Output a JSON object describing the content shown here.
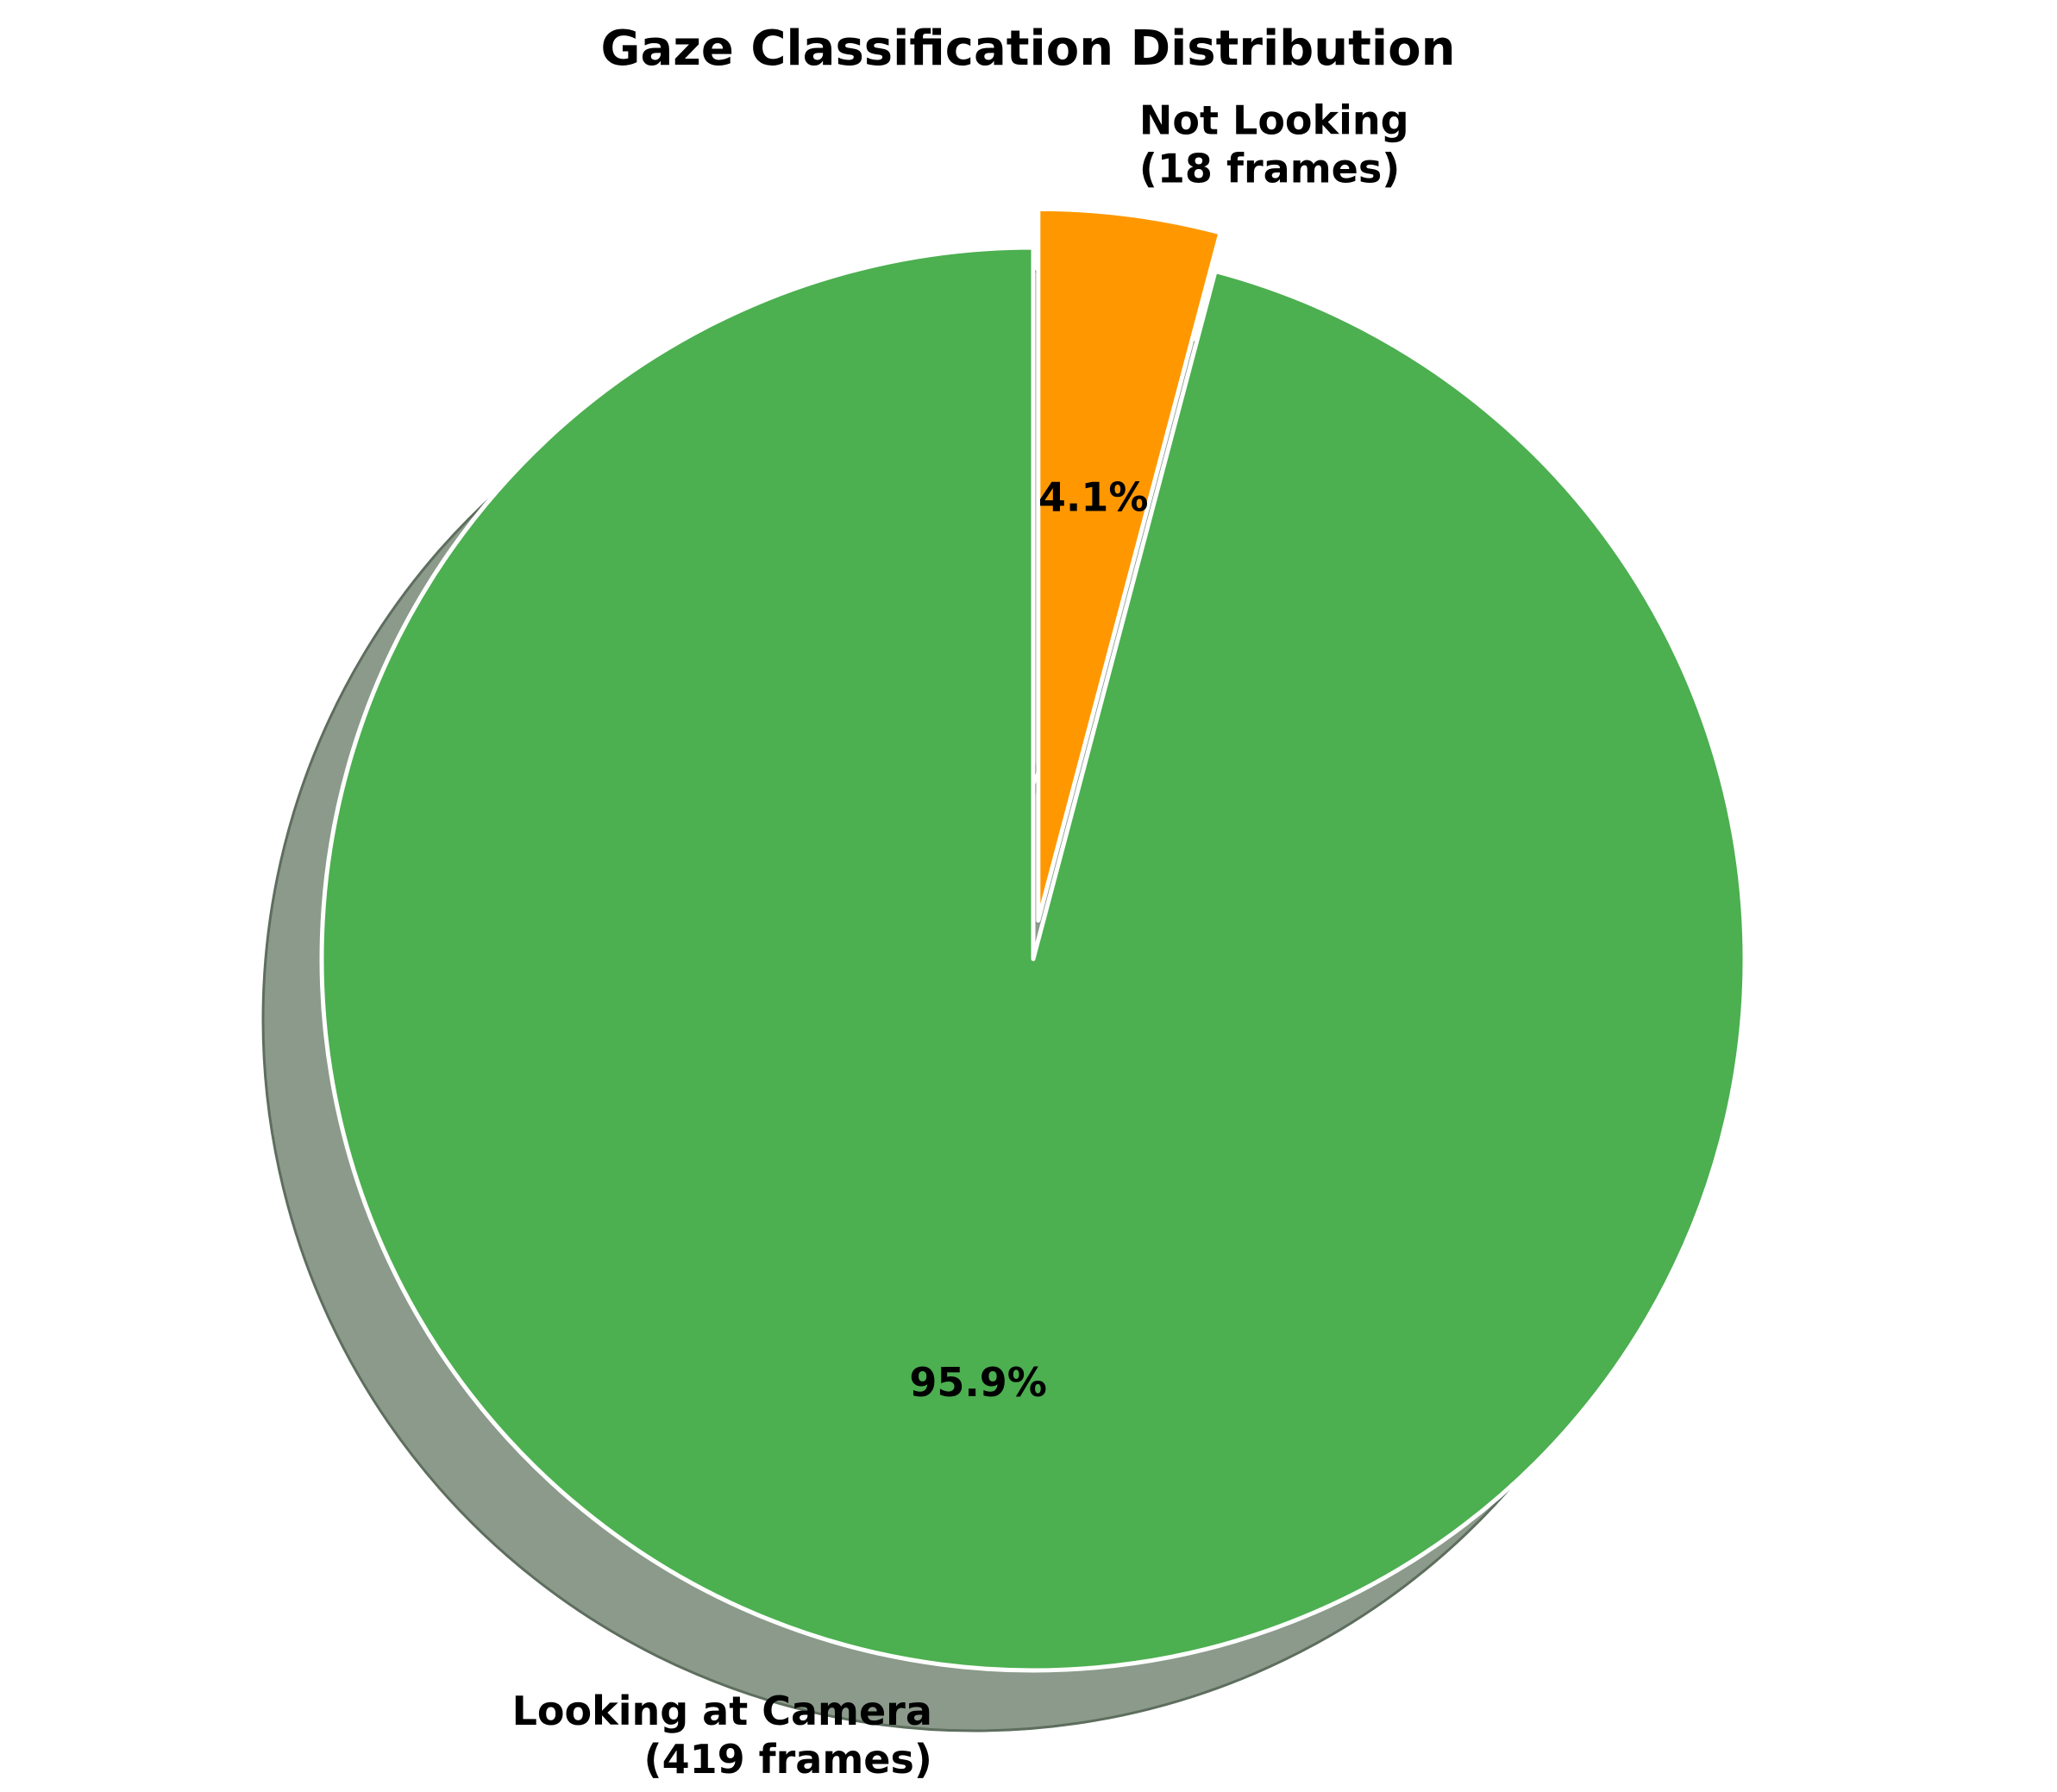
{
  "chart_data": {
    "type": "pie",
    "title": "Gaze Classification Distribution",
    "slices": [
      {
        "name": "Looking at Camera",
        "value": 419,
        "percent_label": "95.9%",
        "label_lines": [
          "Looking at Camera",
          "(419 frames)"
        ],
        "color": "#4caf50",
        "exploded": false
      },
      {
        "name": "Not Looking",
        "value": 18,
        "percent_label": "4.1%",
        "label_lines": [
          "Not Looking",
          "(18 frames)"
        ],
        "color": "#ff9800",
        "exploded": true
      }
    ],
    "start_angle": "top",
    "direction": "clockwise",
    "shadow": true,
    "shadow_color": "#8b9a8b",
    "edge_color": "#ffffff",
    "legend": "none"
  }
}
